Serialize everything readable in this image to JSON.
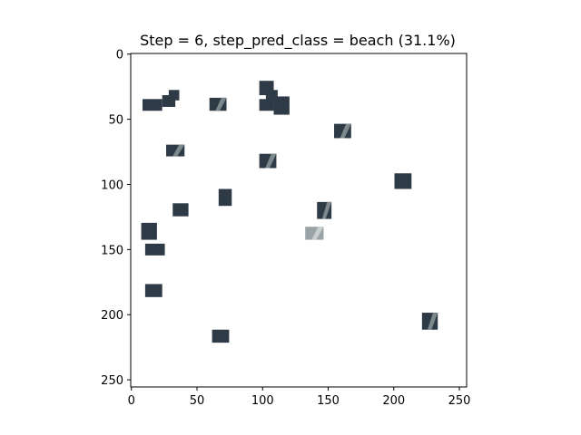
{
  "title": "Step = 6, step_pred_class = beach (31.1%)",
  "image_size": [
    256,
    256
  ],
  "x_ticks": [
    0,
    50,
    100,
    150,
    200,
    250
  ],
  "y_ticks": [
    0,
    50,
    100,
    150,
    200,
    250
  ],
  "background_color": "#ffffff",
  "patch_color_dark": "#2e3b47",
  "patch_color_light": "#9aa4a6",
  "patches": [
    {
      "x": 9,
      "y": 35,
      "w": 15,
      "h": 9,
      "tone": "dark"
    },
    {
      "x": 24,
      "y": 32,
      "w": 10,
      "h": 9,
      "tone": "dark"
    },
    {
      "x": 29,
      "y": 28,
      "w": 8,
      "h": 8,
      "tone": "dark"
    },
    {
      "x": 60,
      "y": 34,
      "w": 13,
      "h": 10,
      "tone": "mixed"
    },
    {
      "x": 98,
      "y": 21,
      "w": 11,
      "h": 11,
      "tone": "dark"
    },
    {
      "x": 103,
      "y": 28,
      "w": 9,
      "h": 8,
      "tone": "dark"
    },
    {
      "x": 98,
      "y": 35,
      "w": 11,
      "h": 9,
      "tone": "dark"
    },
    {
      "x": 109,
      "y": 33,
      "w": 12,
      "h": 14,
      "tone": "dark"
    },
    {
      "x": 27,
      "y": 70,
      "w": 14,
      "h": 9,
      "tone": "mixed"
    },
    {
      "x": 98,
      "y": 77,
      "w": 13,
      "h": 11,
      "tone": "mixed"
    },
    {
      "x": 155,
      "y": 54,
      "w": 13,
      "h": 11,
      "tone": "mixed"
    },
    {
      "x": 201,
      "y": 92,
      "w": 13,
      "h": 12,
      "tone": "dark"
    },
    {
      "x": 67,
      "y": 104,
      "w": 10,
      "h": 13,
      "tone": "dark"
    },
    {
      "x": 32,
      "y": 115,
      "w": 12,
      "h": 10,
      "tone": "dark"
    },
    {
      "x": 142,
      "y": 114,
      "w": 11,
      "h": 13,
      "tone": "mixed"
    },
    {
      "x": 133,
      "y": 133,
      "w": 14,
      "h": 10,
      "tone": "light"
    },
    {
      "x": 8,
      "y": 130,
      "w": 12,
      "h": 13,
      "tone": "dark"
    },
    {
      "x": 11,
      "y": 146,
      "w": 15,
      "h": 9,
      "tone": "dark"
    },
    {
      "x": 11,
      "y": 177,
      "w": 13,
      "h": 10,
      "tone": "dark"
    },
    {
      "x": 62,
      "y": 212,
      "w": 13,
      "h": 10,
      "tone": "dark"
    },
    {
      "x": 222,
      "y": 199,
      "w": 12,
      "h": 13,
      "tone": "mixed"
    }
  ]
}
